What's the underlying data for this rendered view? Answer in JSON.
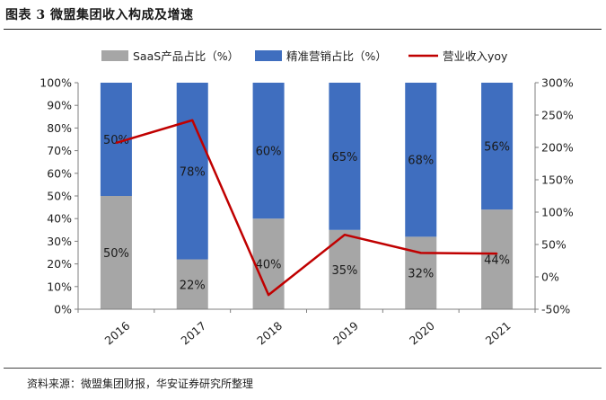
{
  "figure": {
    "title": "图表 3 微盟集团收入构成及增速",
    "source": "资料来源：微盟集团财报，华安证券研究所整理"
  },
  "colors": {
    "saas": "#a6a6a6",
    "marketing": "#3f6ebf",
    "growth": "#c00000",
    "axis": "#7f7f7f"
  },
  "chart_data": {
    "type": "bar",
    "stacked": true,
    "categories": [
      "2016",
      "2017",
      "2018",
      "2019",
      "2020",
      "2021"
    ],
    "series": [
      {
        "name": "SaaS产品占比（%）",
        "type": "bar",
        "axis": "left",
        "values": [
          50,
          22,
          40,
          35,
          32,
          44
        ],
        "labels": [
          "50%",
          "22%",
          "40%",
          "35%",
          "32%",
          "44%"
        ]
      },
      {
        "name": "精准营销占比（%）",
        "type": "bar",
        "axis": "left",
        "values": [
          50,
          78,
          60,
          65,
          68,
          56
        ],
        "labels": [
          "50%",
          "78%",
          "60%",
          "65%",
          "68%",
          "56%"
        ]
      },
      {
        "name": "营业收入yoy",
        "type": "line",
        "axis": "right",
        "values": [
          207,
          242,
          -28,
          65,
          37,
          36
        ]
      }
    ],
    "y_left": {
      "min": 0,
      "max": 100,
      "step": 10,
      "ticks": [
        "0%",
        "10%",
        "20%",
        "30%",
        "40%",
        "50%",
        "60%",
        "70%",
        "80%",
        "90%",
        "100%"
      ]
    },
    "y_right": {
      "min": -50,
      "max": 300,
      "step": 50,
      "ticks": [
        "-50%",
        "0%",
        "50%",
        "100%",
        "150%",
        "200%",
        "250%",
        "300%"
      ]
    },
    "legend": "top",
    "grid": false
  }
}
